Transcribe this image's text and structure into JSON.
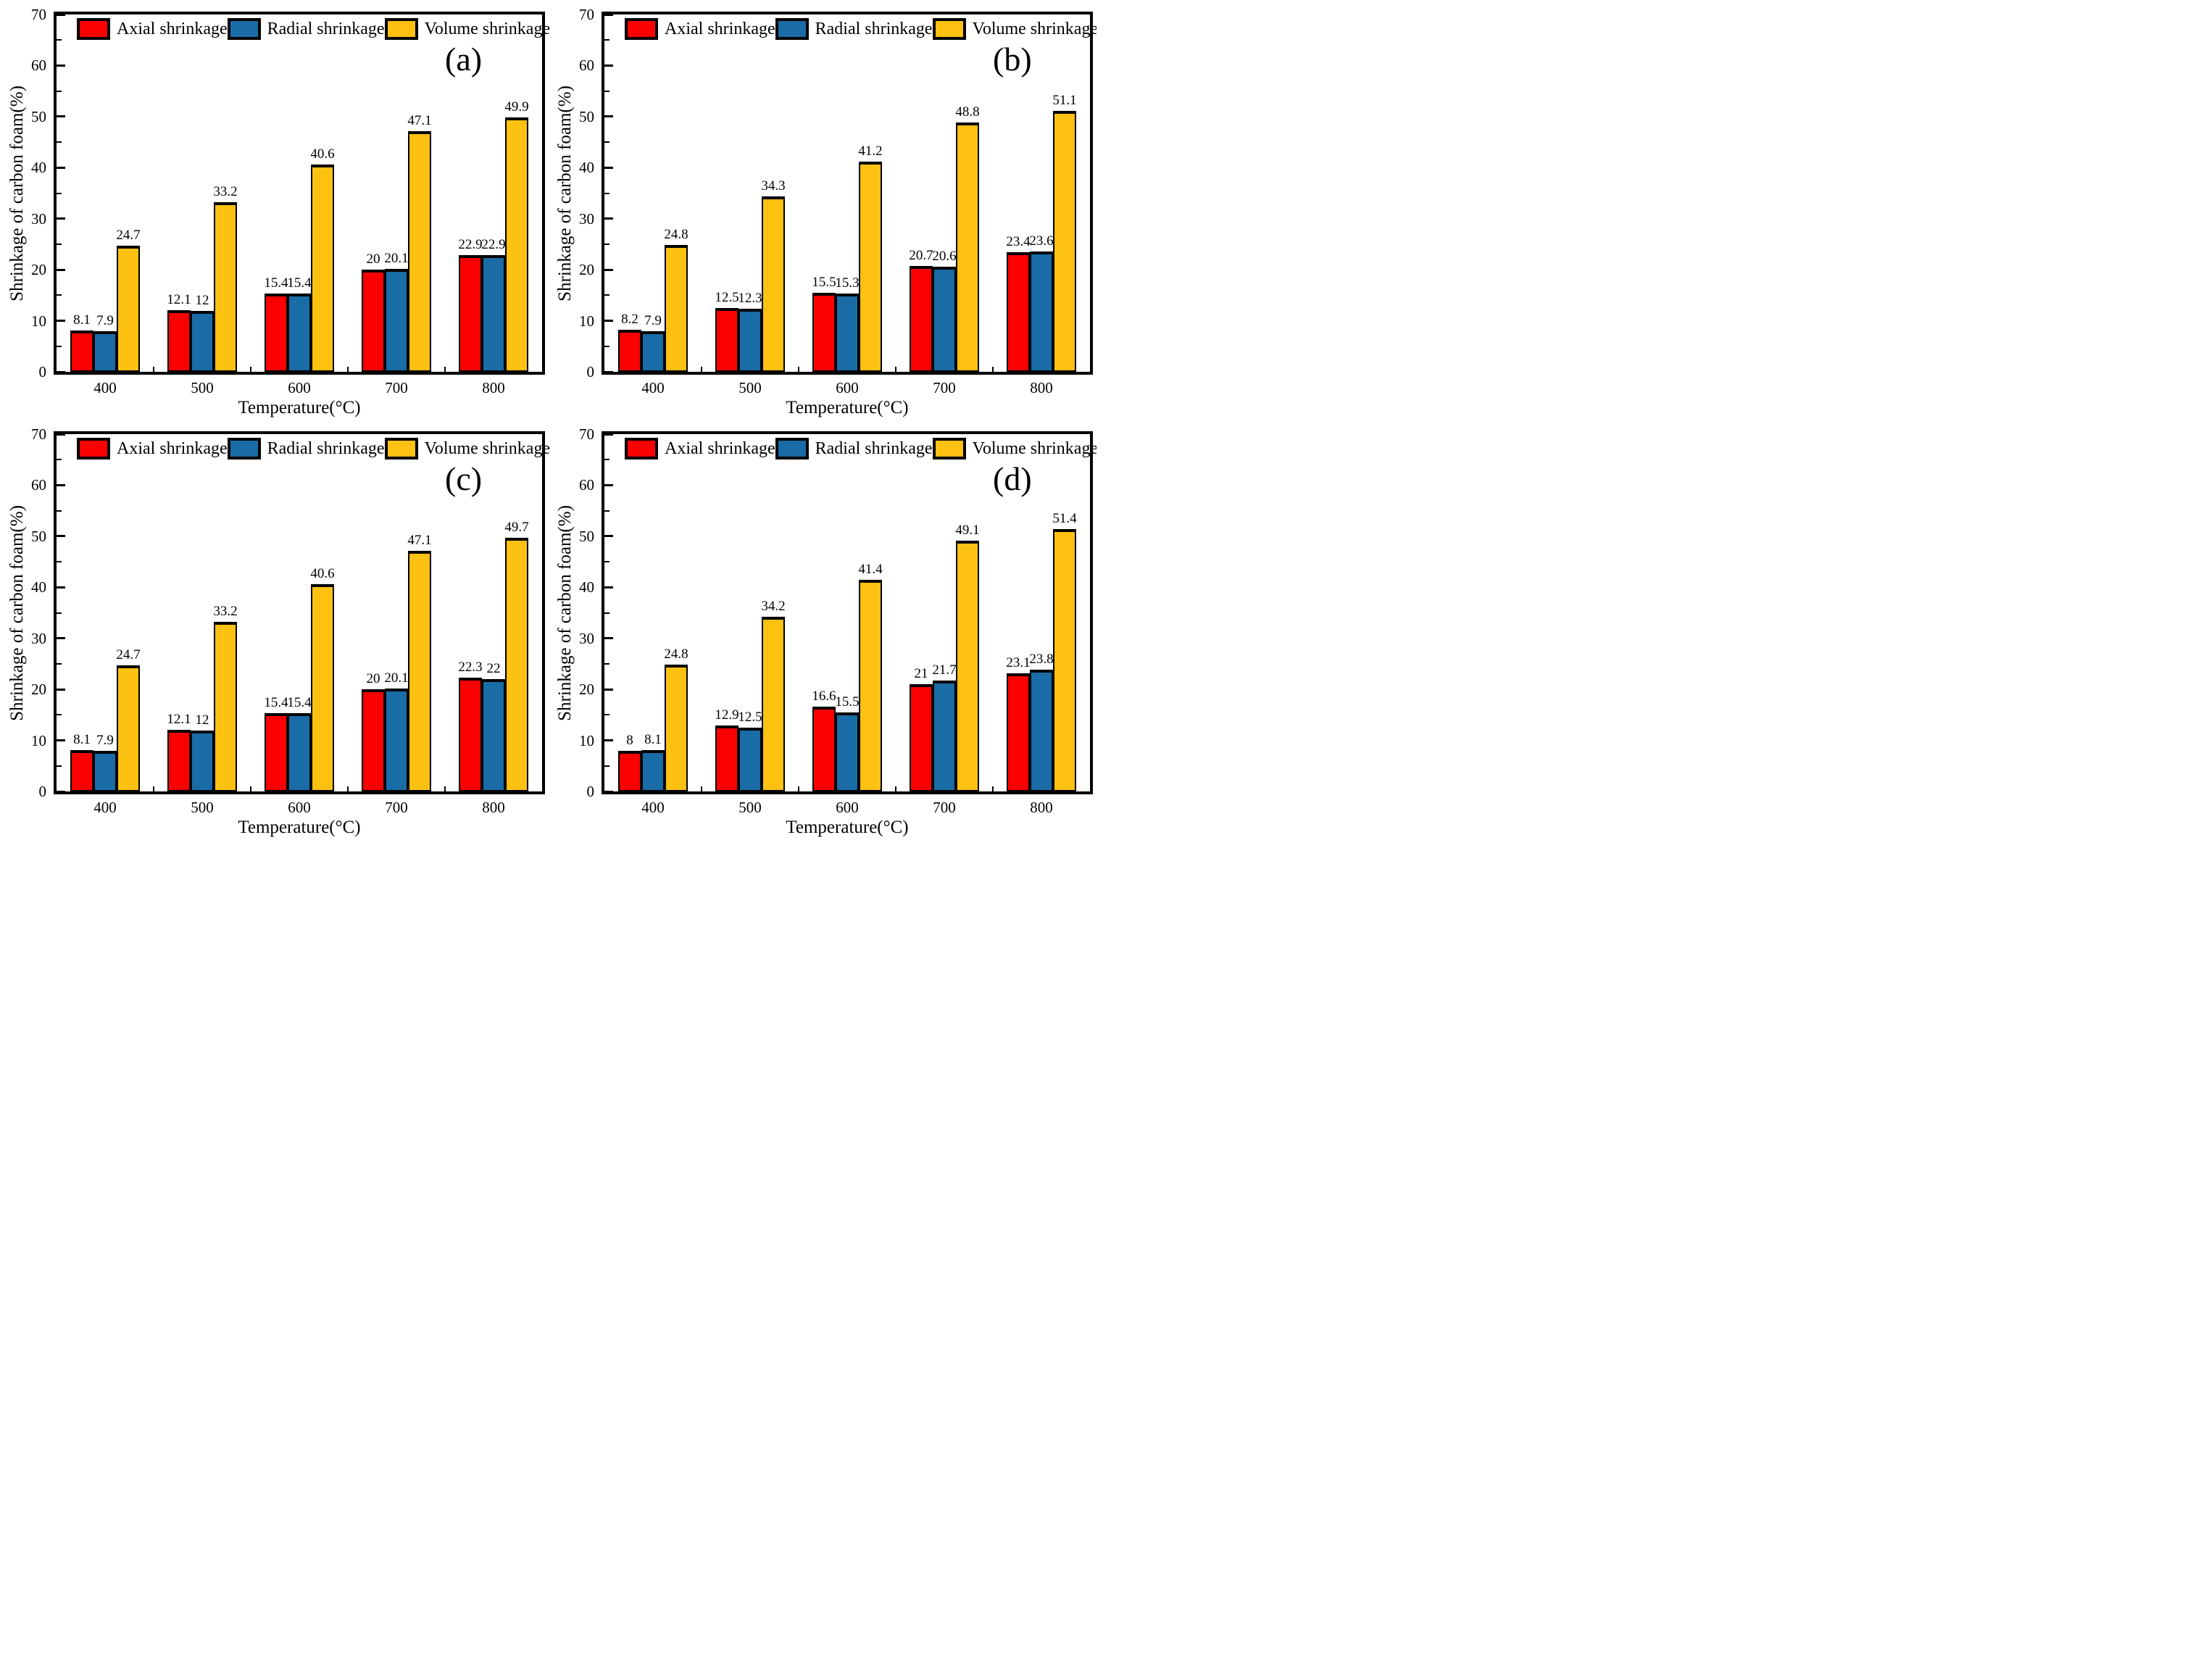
{
  "page": {
    "background": "#ffffff"
  },
  "colors": {
    "axial": "#FA0000",
    "radial": "#1A6CA6",
    "volume": "#FDC112",
    "edge": "#000000"
  },
  "legend": {
    "items": [
      {
        "label": "Axial shrinkage",
        "color": "#FA0000"
      },
      {
        "label": "Radial shrinkage",
        "color": "#1A6CA6"
      },
      {
        "label": "Volume shrinkage",
        "color": "#FDC112"
      }
    ]
  },
  "chart_data": [
    {
      "type": "bar",
      "panel_label": "(a)",
      "title": "",
      "xlabel": "Temperature(°C)",
      "ylabel": "Shrinkage of carbon foam(%)",
      "categories": [
        "400",
        "500",
        "600",
        "700",
        "800"
      ],
      "series": [
        {
          "name": "Axial shrinkage",
          "values": [
            8.1,
            12.1,
            15.4,
            20,
            22.9
          ]
        },
        {
          "name": "Radial shrinkage",
          "values": [
            7.9,
            12,
            15.4,
            20.1,
            22.9
          ]
        },
        {
          "name": "Volume shrinkage",
          "values": [
            24.7,
            33.2,
            40.6,
            47.1,
            49.9
          ]
        }
      ],
      "ylim": [
        0,
        70
      ],
      "yticks": [
        0,
        10,
        20,
        30,
        40,
        50,
        60,
        70
      ],
      "grid": false,
      "legend_position": "top-inside"
    },
    {
      "type": "bar",
      "panel_label": "(b)",
      "title": "",
      "xlabel": "Temperature(°C)",
      "ylabel": "Shrinkage of carbon foam(%)",
      "categories": [
        "400",
        "500",
        "600",
        "700",
        "800"
      ],
      "series": [
        {
          "name": "Axial shrinkage",
          "values": [
            8.2,
            12.5,
            15.5,
            20.7,
            23.4
          ]
        },
        {
          "name": "Radial shrinkage",
          "values": [
            7.9,
            12.3,
            15.3,
            20.6,
            23.6
          ]
        },
        {
          "name": "Volume shrinkage",
          "values": [
            24.8,
            34.3,
            41.2,
            48.8,
            51.1
          ]
        }
      ],
      "ylim": [
        0,
        70
      ],
      "yticks": [
        0,
        10,
        20,
        30,
        40,
        50,
        60,
        70
      ],
      "grid": false,
      "legend_position": "top-inside"
    },
    {
      "type": "bar",
      "panel_label": "(c)",
      "title": "",
      "xlabel": "Temperature(°C)",
      "ylabel": "Shrinkage of carbon foam(%)",
      "categories": [
        "400",
        "500",
        "600",
        "700",
        "800"
      ],
      "series": [
        {
          "name": "Axial shrinkage",
          "values": [
            8.1,
            12.1,
            15.4,
            20,
            22.3
          ]
        },
        {
          "name": "Radial shrinkage",
          "values": [
            7.9,
            12,
            15.4,
            20.1,
            22
          ]
        },
        {
          "name": "Volume shrinkage",
          "values": [
            24.7,
            33.2,
            40.6,
            47.1,
            49.7
          ]
        }
      ],
      "ylim": [
        0,
        70
      ],
      "yticks": [
        0,
        10,
        20,
        30,
        40,
        50,
        60,
        70
      ],
      "grid": false,
      "legend_position": "top-inside"
    },
    {
      "type": "bar",
      "panel_label": "(d)",
      "title": "",
      "xlabel": "Temperature(°C)",
      "ylabel": "Shrinkage of carbon foam(%)",
      "categories": [
        "400",
        "500",
        "600",
        "700",
        "800"
      ],
      "series": [
        {
          "name": "Axial shrinkage",
          "values": [
            8,
            12.9,
            16.6,
            21,
            23.1
          ]
        },
        {
          "name": "Radial shrinkage",
          "values": [
            8.1,
            12.5,
            15.5,
            21.7,
            23.8
          ]
        },
        {
          "name": "Volume shrinkage",
          "values": [
            24.8,
            34.2,
            41.4,
            49.1,
            51.4
          ]
        }
      ],
      "ylim": [
        0,
        70
      ],
      "yticks": [
        0,
        10,
        20,
        30,
        40,
        50,
        60,
        70
      ],
      "grid": false,
      "legend_position": "top-inside"
    }
  ]
}
